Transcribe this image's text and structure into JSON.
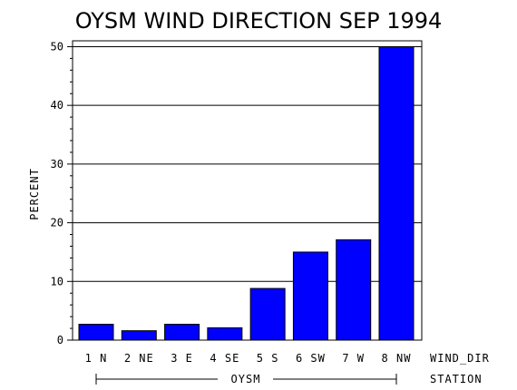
{
  "chart_data": {
    "type": "bar",
    "title": "OYSM WIND DIRECTION SEP 1994",
    "ylabel": "PERCENT",
    "xlabel": "WIND_DIR",
    "group_axis_label": "STATION",
    "group_label": "OYSM",
    "categories": [
      "1 N",
      "2 NE",
      "3 E",
      "4 SE",
      "5 S",
      "6 SW",
      "7 W",
      "8 NW"
    ],
    "values": [
      2.7,
      1.6,
      2.7,
      2.1,
      8.8,
      15.0,
      17.1,
      50.0
    ],
    "ylim": [
      0,
      51
    ],
    "yticks": [
      0,
      10,
      20,
      30,
      40,
      50
    ],
    "grid": true,
    "bar_color": "#0000ff"
  }
}
